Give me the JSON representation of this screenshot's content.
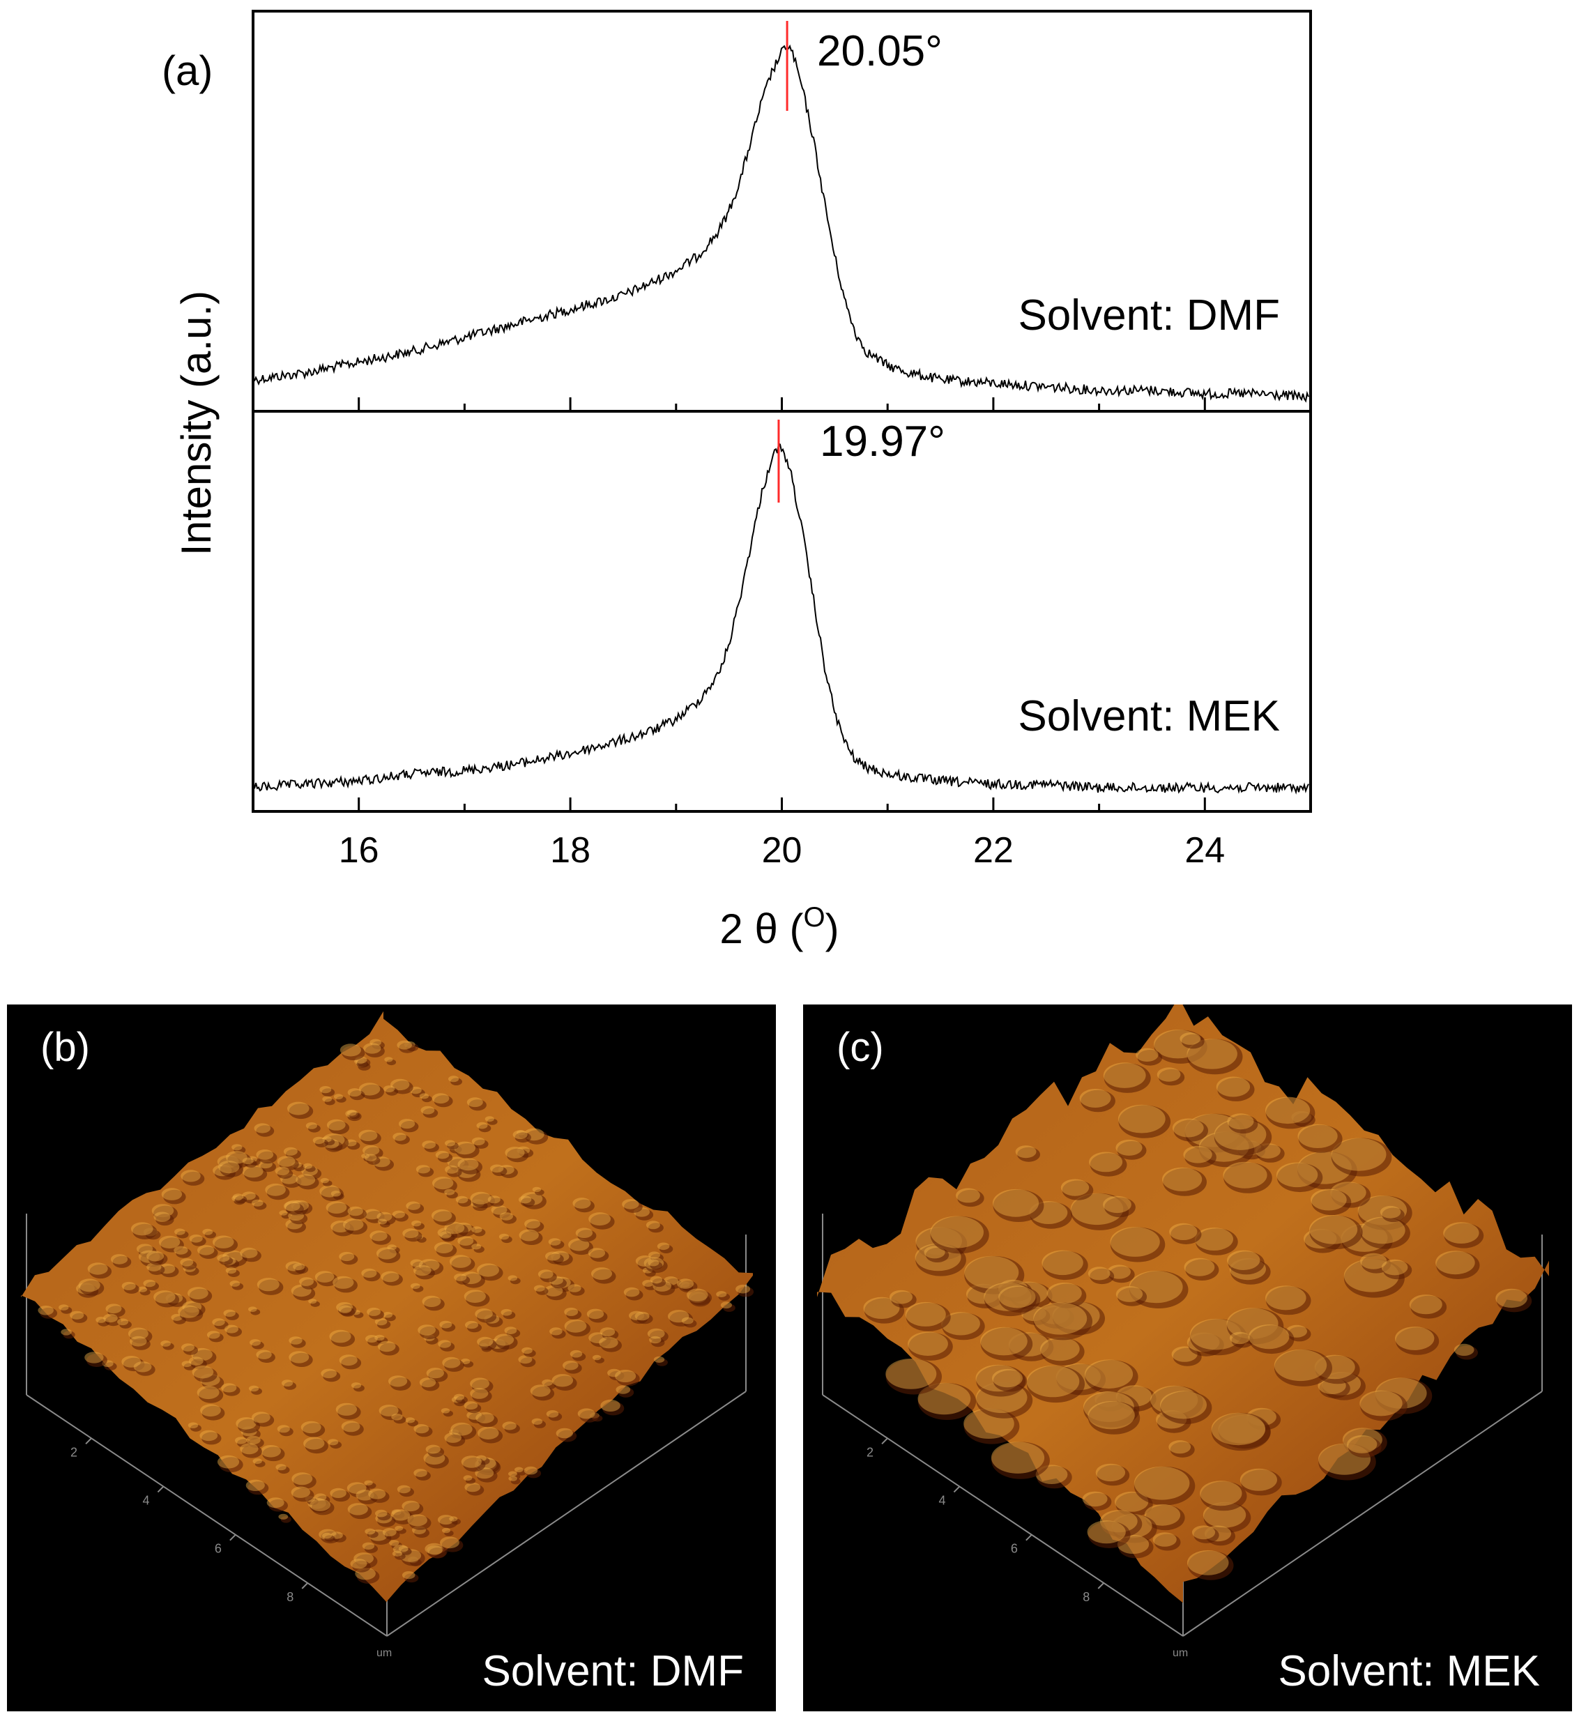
{
  "chart_data": [
    {
      "type": "line",
      "panel_label": "(a)",
      "xlabel_main": "2 θ (",
      "xlabel_sup": "O",
      "xlabel_close": ")",
      "ylabel": "Intensity (a.u.)",
      "xlim": [
        15,
        25
      ],
      "xticks": [
        16,
        18,
        20,
        22,
        24
      ],
      "xtick_labels": [
        "16",
        "18",
        "20",
        "22",
        "24"
      ],
      "minor_xticks": [
        17,
        19,
        21,
        23
      ],
      "series": [
        {
          "name": "Solvent: DMF",
          "label": "Solvent: DMF",
          "peak_position": 20.05,
          "peak_label": "20.05°",
          "peak_marker_color": "#ff2a2a",
          "x": [
            15.0,
            15.5,
            16.0,
            16.5,
            17.0,
            17.5,
            18.0,
            18.5,
            18.8,
            19.0,
            19.2,
            19.4,
            19.5,
            19.6,
            19.7,
            19.8,
            19.9,
            20.0,
            20.05,
            20.1,
            20.2,
            20.3,
            20.4,
            20.5,
            20.6,
            20.7,
            20.8,
            21.0,
            21.2,
            21.5,
            22.0,
            22.5,
            23.0,
            23.5,
            24.0,
            24.5,
            25.0
          ],
          "y": [
            0.05,
            0.07,
            0.1,
            0.13,
            0.17,
            0.21,
            0.25,
            0.29,
            0.33,
            0.36,
            0.4,
            0.47,
            0.53,
            0.61,
            0.72,
            0.83,
            0.92,
            0.98,
            1.0,
            0.98,
            0.87,
            0.73,
            0.56,
            0.4,
            0.27,
            0.18,
            0.13,
            0.09,
            0.07,
            0.05,
            0.04,
            0.03,
            0.02,
            0.02,
            0.01,
            0.01,
            0.0
          ]
        },
        {
          "name": "Solvent: MEK",
          "label": "Solvent: MEK",
          "peak_position": 19.97,
          "peak_label": "19.97°",
          "peak_marker_color": "#ff2a2a",
          "x": [
            15.0,
            15.5,
            16.0,
            16.5,
            17.0,
            17.5,
            18.0,
            18.5,
            18.8,
            19.0,
            19.2,
            19.4,
            19.5,
            19.6,
            19.7,
            19.8,
            19.9,
            19.97,
            20.05,
            20.1,
            20.2,
            20.3,
            20.4,
            20.5,
            20.6,
            20.7,
            20.8,
            21.0,
            21.2,
            21.5,
            22.0,
            22.5,
            23.0,
            23.5,
            24.0,
            24.5,
            25.0
          ],
          "y": [
            0.0,
            0.01,
            0.02,
            0.04,
            0.05,
            0.07,
            0.1,
            0.14,
            0.17,
            0.2,
            0.25,
            0.33,
            0.42,
            0.55,
            0.7,
            0.85,
            0.96,
            1.0,
            0.96,
            0.9,
            0.74,
            0.55,
            0.36,
            0.22,
            0.13,
            0.08,
            0.06,
            0.04,
            0.03,
            0.02,
            0.01,
            0.01,
            0.0,
            0.0,
            0.0,
            0.0,
            0.0
          ]
        }
      ]
    }
  ],
  "afm_panels": [
    {
      "panel_label": "(b)",
      "solvent_label": "Solvent: DMF",
      "axis_ticks": [
        "2",
        "4",
        "6",
        "8"
      ],
      "axis_unit": "um"
    },
    {
      "panel_label": "(c)",
      "solvent_label": "Solvent: MEK",
      "axis_ticks": [
        "2",
        "4",
        "6",
        "8"
      ],
      "axis_unit": "um"
    }
  ],
  "colors": {
    "trace": "#000000",
    "peak_marker": "#ff2a2a",
    "afm_background": "#000000",
    "afm_surface": "#c0701c",
    "afm_highlight": "#f0b048",
    "afm_shadow": "#5a1e04"
  }
}
